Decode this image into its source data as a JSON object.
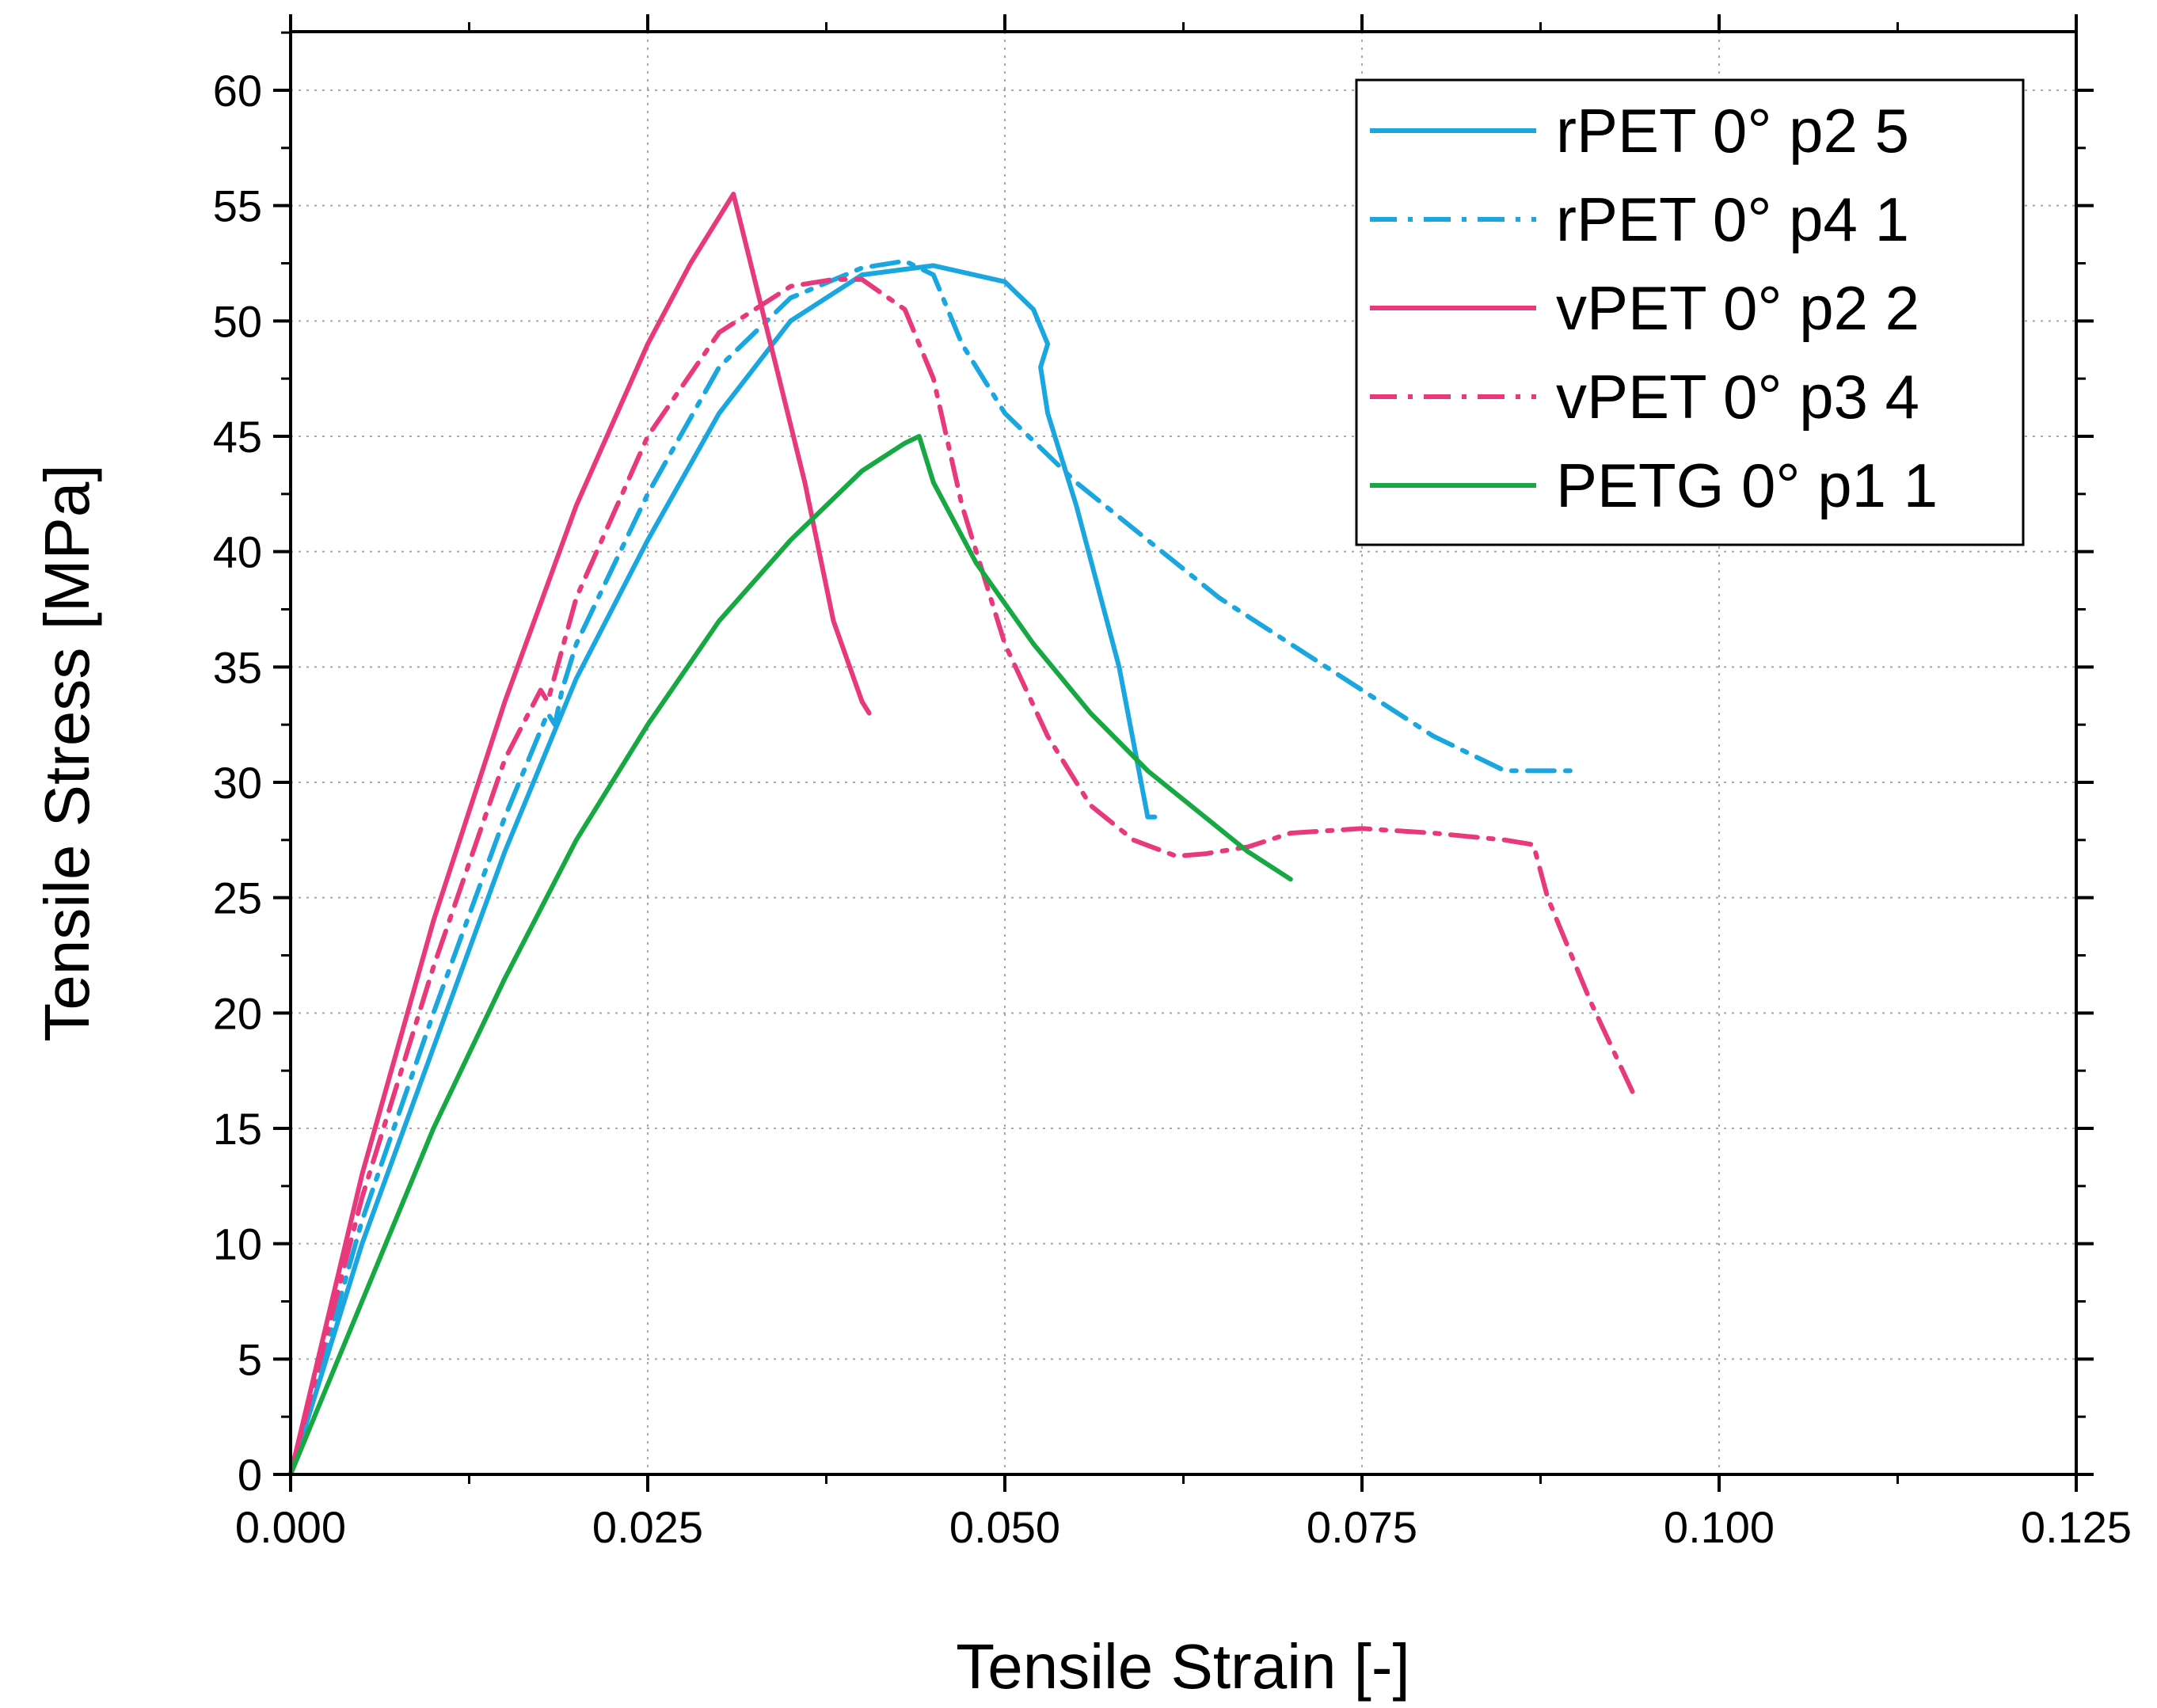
{
  "chart_data": {
    "type": "line",
    "title": "",
    "xlabel": "Tensile Strain [-]",
    "ylabel": "Tensile Stress [MPa]",
    "xlim": [
      0,
      0.125
    ],
    "ylim": [
      0,
      62
    ],
    "xticks": [
      0,
      0.025,
      0.05,
      0.075,
      0.1,
      0.125
    ],
    "xtick_labels": [
      "0.000",
      "0.025",
      "0.050",
      "0.075",
      "0.100",
      "0.125"
    ],
    "yticks": [
      0,
      5,
      10,
      15,
      20,
      25,
      30,
      35,
      40,
      45,
      50,
      55,
      60
    ],
    "ytick_labels": [
      "0",
      "5",
      "10",
      "15",
      "20",
      "25",
      "30",
      "35",
      "40",
      "45",
      "50",
      "55",
      "60"
    ],
    "grid": true,
    "legend_position": "top-right",
    "series": [
      {
        "name": "rPET 0° p2 5",
        "color": "#1aa7e0",
        "style": "solid",
        "x": [
          0,
          0.005,
          0.01,
          0.015,
          0.02,
          0.025,
          0.03,
          0.035,
          0.04,
          0.045,
          0.05,
          0.052,
          0.053,
          0.0525,
          0.053,
          0.055,
          0.058,
          0.06,
          0.0605
        ],
        "y": [
          0,
          10,
          18.5,
          27,
          34.5,
          40.5,
          46,
          50,
          52,
          52.4,
          51.7,
          50.5,
          49,
          48,
          46,
          42,
          35,
          28.5,
          28.5
        ]
      },
      {
        "name": "rPET 0° p4 1",
        "color": "#1aa7e0",
        "style": "dashdot",
        "x": [
          0,
          0.005,
          0.01,
          0.015,
          0.018,
          0.0185,
          0.019,
          0.02,
          0.025,
          0.03,
          0.035,
          0.04,
          0.043,
          0.045,
          0.047,
          0.05,
          0.055,
          0.06,
          0.065,
          0.07,
          0.075,
          0.08,
          0.085,
          0.09
        ],
        "y": [
          0,
          11,
          20,
          28.5,
          33,
          32.5,
          34,
          36,
          42.5,
          48,
          51,
          52.3,
          52.6,
          52,
          49,
          46,
          43,
          40.5,
          38,
          36,
          34,
          32,
          30.5,
          30.5
        ]
      },
      {
        "name": "vPET 0° p2 2",
        "color": "#e8397c",
        "style": "solid",
        "x": [
          0,
          0.005,
          0.01,
          0.015,
          0.02,
          0.025,
          0.028,
          0.03,
          0.031,
          0.032,
          0.034,
          0.036,
          0.038,
          0.04,
          0.0405
        ],
        "y": [
          0,
          13,
          24,
          33.5,
          42,
          49,
          52.5,
          54.5,
          55.5,
          53,
          48,
          43,
          37,
          33.5,
          33
        ]
      },
      {
        "name": "vPET 0° p3 4",
        "color": "#e8397c",
        "style": "dashdot",
        "x": [
          0,
          0.005,
          0.01,
          0.015,
          0.0175,
          0.018,
          0.02,
          0.025,
          0.03,
          0.035,
          0.038,
          0.04,
          0.043,
          0.045,
          0.047,
          0.05,
          0.053,
          0.056,
          0.059,
          0.062,
          0.064,
          0.067,
          0.07,
          0.075,
          0.08,
          0.085,
          0.087,
          0.088,
          0.091,
          0.094
        ],
        "y": [
          0,
          12,
          22,
          31,
          34,
          33.5,
          38,
          45,
          49.5,
          51.5,
          51.8,
          51.8,
          50.5,
          47.5,
          42,
          36,
          32,
          29,
          27.5,
          26.8,
          26.9,
          27.2,
          27.8,
          28,
          27.8,
          27.5,
          27.3,
          25,
          20.5,
          16.5
        ]
      },
      {
        "name": "PETG 0° p1 1",
        "color": "#17a844",
        "style": "solid",
        "x": [
          0,
          0.005,
          0.01,
          0.015,
          0.02,
          0.025,
          0.03,
          0.035,
          0.04,
          0.043,
          0.044,
          0.045,
          0.048,
          0.052,
          0.056,
          0.06,
          0.064,
          0.067,
          0.07
        ],
        "y": [
          0,
          7.5,
          15,
          21.5,
          27.5,
          32.5,
          37,
          40.5,
          43.5,
          44.7,
          45,
          43,
          39.5,
          36,
          33,
          30.5,
          28.5,
          27,
          25.8
        ]
      }
    ]
  }
}
